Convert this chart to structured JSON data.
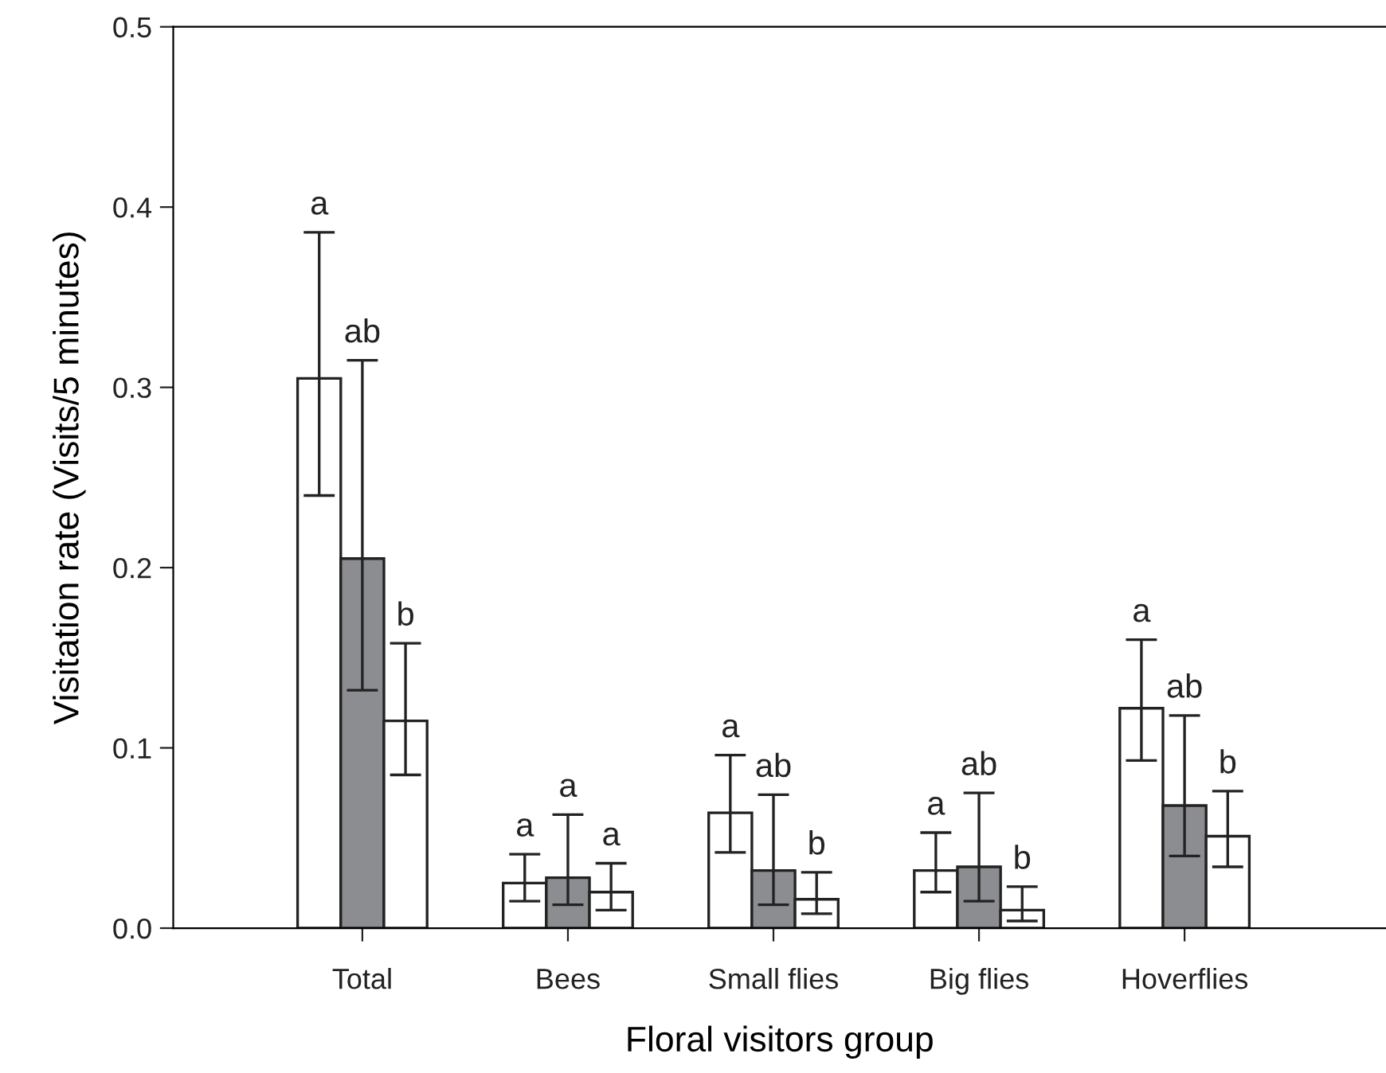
{
  "chart_data": {
    "type": "bar",
    "xlabel": "Floral visitors group",
    "ylabel": "Visitation rate (Visits/5 minutes)",
    "categories": [
      "Total",
      "Bees",
      "Small flies",
      "Big flies",
      "Hoverflies"
    ],
    "series": [
      {
        "color": "#ffffff",
        "values": [
          0.305,
          0.025,
          0.064,
          0.032,
          0.122
        ],
        "errors": [
          [
            0.24,
            0.386
          ],
          [
            0.015,
            0.041
          ],
          [
            0.042,
            0.096
          ],
          [
            0.02,
            0.053
          ],
          [
            0.093,
            0.16
          ]
        ]
      },
      {
        "color": "#8c8d90",
        "values": [
          0.205,
          0.028,
          0.032,
          0.034,
          0.068
        ],
        "errors": [
          [
            0.132,
            0.315
          ],
          [
            0.013,
            0.063
          ],
          [
            0.013,
            0.074
          ],
          [
            0.015,
            0.075
          ],
          [
            0.04,
            0.118
          ]
        ]
      },
      {
        "color": "#ffffff",
        "values": [
          0.115,
          0.02,
          0.016,
          0.01,
          0.051
        ],
        "errors": [
          [
            0.085,
            0.158
          ],
          [
            0.01,
            0.036
          ],
          [
            0.008,
            0.031
          ],
          [
            0.004,
            0.023
          ],
          [
            0.034,
            0.076
          ]
        ]
      }
    ],
    "annotations": [
      "a",
      "ab",
      "b",
      "a",
      "a",
      "a",
      "a",
      "ab",
      "b",
      "a",
      "ab",
      "b",
      "a",
      "ab",
      "b"
    ],
    "ylim": [
      0,
      0.5
    ],
    "yticks": [
      {
        "value": 0,
        "label": "0.0"
      },
      0.1,
      0.2,
      0.3,
      0.4,
      0.5
    ],
    "grid": false,
    "legend": false
  }
}
